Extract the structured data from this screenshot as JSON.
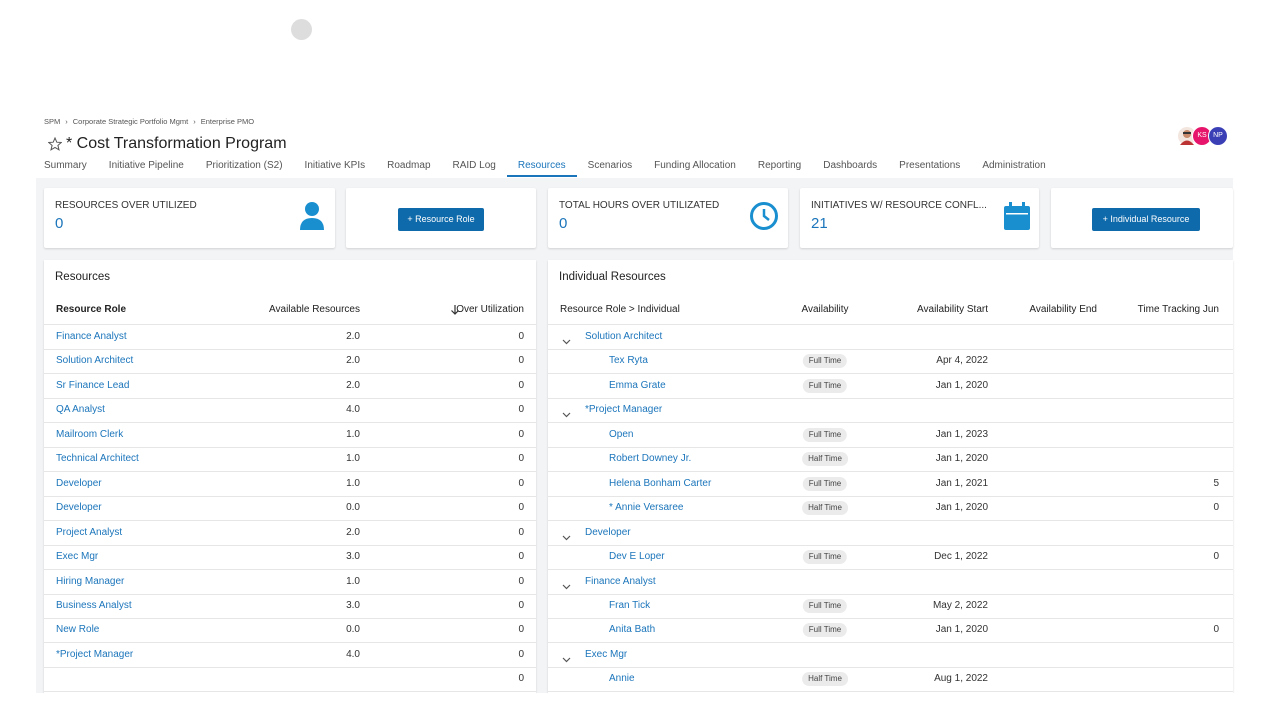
{
  "breadcrumb": [
    "SPM",
    "Corporate Strategic Portfolio Mgmt",
    "Enterprise PMO"
  ],
  "title": "* Cost Transformation Program",
  "avatars": [
    "KS",
    "NP"
  ],
  "tabs": [
    {
      "label": "Summary"
    },
    {
      "label": "Initiative Pipeline"
    },
    {
      "label": "Prioritization (S2)"
    },
    {
      "label": "Initiative KPIs"
    },
    {
      "label": "Roadmap"
    },
    {
      "label": "RAID Log"
    },
    {
      "label": "Resources",
      "active": true
    },
    {
      "label": "Scenarios"
    },
    {
      "label": "Funding Allocation"
    },
    {
      "label": "Reporting"
    },
    {
      "label": "Dashboards"
    },
    {
      "label": "Presentations"
    },
    {
      "label": "Administration"
    }
  ],
  "kpis": [
    {
      "label": "RESOURCES OVER UTILIZED",
      "value": "0"
    },
    {
      "label": "TOTAL HOURS OVER UTILIZATED",
      "value": "0"
    },
    {
      "label": "INITIATIVES W/ RESOURCE CONFL...",
      "value": "21"
    }
  ],
  "buttons": [
    "+ Resource Role",
    "+ Individual Resource"
  ],
  "resources": {
    "title": "Resources",
    "columns": [
      "Resource Role",
      "Available Resources",
      "Over Utilization"
    ],
    "rows": [
      {
        "role": "Finance Analyst",
        "available": "2.0",
        "over": "0"
      },
      {
        "role": "Solution Architect",
        "available": "2.0",
        "over": "0"
      },
      {
        "role": "Sr Finance Lead",
        "available": "2.0",
        "over": "0"
      },
      {
        "role": "QA Analyst",
        "available": "4.0",
        "over": "0"
      },
      {
        "role": "Mailroom Clerk",
        "available": "1.0",
        "over": "0"
      },
      {
        "role": "Technical Architect",
        "available": "1.0",
        "over": "0"
      },
      {
        "role": "Developer",
        "available": "1.0",
        "over": "0"
      },
      {
        "role": "Developer",
        "available": "0.0",
        "over": "0"
      },
      {
        "role": "Project Analyst",
        "available": "2.0",
        "over": "0"
      },
      {
        "role": "Exec Mgr",
        "available": "3.0",
        "over": "0"
      },
      {
        "role": "Hiring Manager",
        "available": "1.0",
        "over": "0"
      },
      {
        "role": "Business Analyst",
        "available": "3.0",
        "over": "0"
      },
      {
        "role": "New Role",
        "available": "0.0",
        "over": "0"
      },
      {
        "role": "*Project Manager",
        "available": "4.0",
        "over": "0"
      },
      {
        "over": "0"
      }
    ]
  },
  "individual_resources": {
    "title": "Individual Resources",
    "columns": [
      "Resource Role > Individual",
      "Availability",
      "Availability Start",
      "Availability End",
      "Time Tracking Jun"
    ],
    "rows": [
      {
        "group": "Solution Architect"
      },
      {
        "name": "Tex Ryta",
        "availability": "Full Time",
        "start": "Apr 4, 2022"
      },
      {
        "name": "Emma Grate",
        "availability": "Full Time",
        "start": "Jan 1, 2020"
      },
      {
        "group": "*Project Manager"
      },
      {
        "name": "Open",
        "availability": "Full Time",
        "start": "Jan 1, 2023"
      },
      {
        "name": "Robert Downey Jr.",
        "availability": "Half Time",
        "start": "Jan 1, 2020"
      },
      {
        "name": "Helena Bonham Carter",
        "availability": "Full Time",
        "start": "Jan 1, 2021",
        "tracking": "5"
      },
      {
        "name": "* Annie Versaree",
        "availability": "Half Time",
        "start": "Jan 1, 2020",
        "tracking": "0"
      },
      {
        "group": "Developer"
      },
      {
        "name": "Dev E Loper",
        "availability": "Full Time",
        "start": "Dec 1, 2022",
        "tracking": "0"
      },
      {
        "group": "Finance Analyst"
      },
      {
        "name": "Fran Tick",
        "availability": "Full Time",
        "start": "May 2, 2022"
      },
      {
        "name": "Anita Bath",
        "availability": "Full Time",
        "start": "Jan 1, 2020",
        "tracking": "0"
      },
      {
        "group": "Exec Mgr"
      },
      {
        "name": "Annie",
        "availability": "Half Time",
        "start": "Aug 1, 2022"
      }
    ]
  }
}
